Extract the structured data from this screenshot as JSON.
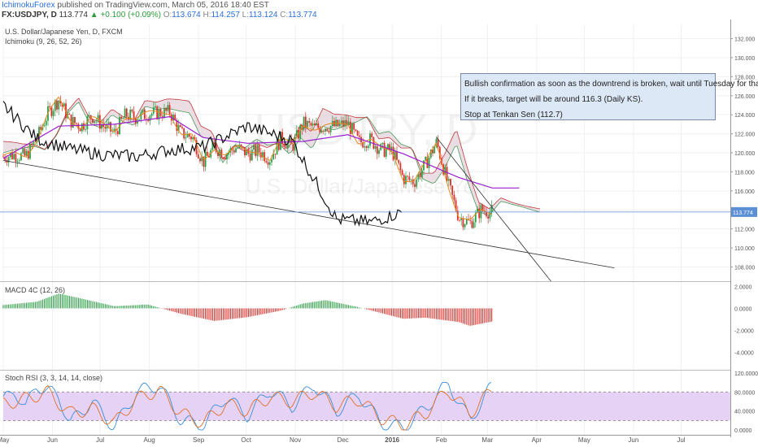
{
  "header": {
    "username": "IchimokuForex",
    "published": "published on TradingView.com, March 05, 2016 18:40 EST",
    "symbol": "FX:USDJPY, D",
    "last": "113.774",
    "change": "▲ +0.100 (+0.09%)",
    "open_label": "O:",
    "open": "113.674",
    "high_label": "H:",
    "high": "114.257",
    "low_label": "L:",
    "low": "113.124",
    "close_label": "C:",
    "close": "113.774"
  },
  "main_pane": {
    "title": "U.S. Dollar/Japanese Yen, D, FXCM",
    "indicator": "Ichimoku (9, 26, 52, 26)",
    "watermark_symbol": "USDJPY, D",
    "watermark_name": "U.S. Dollar/Japanese Yen",
    "price_tag": "113.774"
  },
  "annotation": {
    "line1": "Bullish confirmation as soon as the downtrend is broken, wait until Tuesday for that.",
    "line2": "If it breaks, target will be around 116.3 (Daily KS).",
    "line3": "Stop at Tenkan Sen (112.7)"
  },
  "macd_pane": {
    "title": "MACD 4C (12, 26)"
  },
  "rsi_pane": {
    "title": "Stoch RSI (3, 3, 14, 14, close)"
  },
  "colors": {
    "up_candle": "#2e9e48",
    "down_candle": "#d9302a",
    "tenkan": "#e08a1e",
    "kijun": "#9b1fcf",
    "chikou": "#111111",
    "cloud_bull_line": "#4c9a5a",
    "cloud_bear_line": "#c0393b",
    "cloud_fill": "#e6d4dd",
    "rsi_band": "#e6d2f5",
    "price_line": "#5b8fd6"
  },
  "chart_data": [
    {
      "type": "candlestick",
      "x_tick_labels": [
        "May",
        "Jun",
        "Jul",
        "Aug",
        "Sep",
        "Oct",
        "Nov",
        "Dec",
        "2016",
        "Feb",
        "Mar",
        "Apr",
        "May",
        "Jun",
        "Jul"
      ],
      "y_tick_labels": [
        "132.000",
        "130.000",
        "128.000",
        "126.000",
        "124.000",
        "122.000",
        "120.000",
        "118.000",
        "116.000",
        "114.000",
        "112.000",
        "110.000",
        "108.000"
      ],
      "ylim": [
        106.5,
        133.5
      ],
      "last_price": 113.774,
      "series": [
        {
          "name": "Price",
          "points": [
            {
              "d": "2015-05-01",
              "v": 119.6
            },
            {
              "d": "2015-05-08",
              "v": 119.8
            },
            {
              "d": "2015-05-15",
              "v": 119.6
            },
            {
              "d": "2015-05-22",
              "v": 121.4
            },
            {
              "d": "2015-05-29",
              "v": 124.1
            },
            {
              "d": "2015-06-05",
              "v": 125.6
            },
            {
              "d": "2015-06-12",
              "v": 123.4
            },
            {
              "d": "2015-06-19",
              "v": 122.8
            },
            {
              "d": "2015-06-26",
              "v": 123.9
            },
            {
              "d": "2015-07-03",
              "v": 122.8
            },
            {
              "d": "2015-07-10",
              "v": 122.1
            },
            {
              "d": "2015-07-17",
              "v": 124.0
            },
            {
              "d": "2015-07-24",
              "v": 123.7
            },
            {
              "d": "2015-07-31",
              "v": 124.1
            },
            {
              "d": "2015-08-07",
              "v": 124.2
            },
            {
              "d": "2015-08-14",
              "v": 124.3
            },
            {
              "d": "2015-08-21",
              "v": 122.0
            },
            {
              "d": "2015-08-28",
              "v": 121.7
            },
            {
              "d": "2015-09-04",
              "v": 119.0
            },
            {
              "d": "2015-09-11",
              "v": 120.6
            },
            {
              "d": "2015-09-18",
              "v": 119.9
            },
            {
              "d": "2015-09-25",
              "v": 120.6
            },
            {
              "d": "2015-10-02",
              "v": 119.9
            },
            {
              "d": "2015-10-09",
              "v": 120.2
            },
            {
              "d": "2015-10-16",
              "v": 119.4
            },
            {
              "d": "2015-10-23",
              "v": 121.5
            },
            {
              "d": "2015-10-30",
              "v": 120.6
            },
            {
              "d": "2015-11-06",
              "v": 123.1
            },
            {
              "d": "2015-11-13",
              "v": 122.6
            },
            {
              "d": "2015-11-20",
              "v": 122.8
            },
            {
              "d": "2015-11-27",
              "v": 122.8
            },
            {
              "d": "2015-12-04",
              "v": 123.1
            },
            {
              "d": "2015-12-11",
              "v": 121.1
            },
            {
              "d": "2015-12-18",
              "v": 121.4
            },
            {
              "d": "2015-12-25",
              "v": 120.3
            },
            {
              "d": "2016-01-01",
              "v": 120.2
            },
            {
              "d": "2016-01-08",
              "v": 117.3
            },
            {
              "d": "2016-01-15",
              "v": 117.0
            },
            {
              "d": "2016-01-22",
              "v": 118.8
            },
            {
              "d": "2016-01-29",
              "v": 121.1
            },
            {
              "d": "2016-02-05",
              "v": 116.8
            },
            {
              "d": "2016-02-12",
              "v": 113.2
            },
            {
              "d": "2016-02-19",
              "v": 112.6
            },
            {
              "d": "2016-02-26",
              "v": 114.0
            },
            {
              "d": "2016-03-04",
              "v": 113.8
            }
          ]
        },
        {
          "name": "Kijun",
          "points": [
            {
              "d": "2015-05-01",
              "v": 119.4
            },
            {
              "d": "2015-06-05",
              "v": 122.8
            },
            {
              "d": "2015-07-10",
              "v": 123.0
            },
            {
              "d": "2015-08-14",
              "v": 123.8
            },
            {
              "d": "2015-09-04",
              "v": 121.6
            },
            {
              "d": "2015-10-02",
              "v": 121.0
            },
            {
              "d": "2015-11-06",
              "v": 121.2
            },
            {
              "d": "2015-12-04",
              "v": 121.9
            },
            {
              "d": "2016-01-08",
              "v": 119.9
            },
            {
              "d": "2016-02-12",
              "v": 117.4
            },
            {
              "d": "2016-03-04",
              "v": 116.3
            },
            {
              "d": "2016-03-21",
              "v": 116.3
            }
          ]
        },
        {
          "name": "Chikou",
          "points": [
            {
              "d": "2015-05-01",
              "v": 125.0
            },
            {
              "d": "2015-05-22",
              "v": 121.5
            },
            {
              "d": "2015-06-12",
              "v": 120.4
            },
            {
              "d": "2015-07-03",
              "v": 119.8
            },
            {
              "d": "2015-07-24",
              "v": 119.6
            },
            {
              "d": "2015-08-14",
              "v": 120.3
            },
            {
              "d": "2015-09-04",
              "v": 120.6
            },
            {
              "d": "2015-10-02",
              "v": 122.8
            },
            {
              "d": "2015-10-30",
              "v": 121.3
            },
            {
              "d": "2015-11-27",
              "v": 113.0
            },
            {
              "d": "2015-12-18",
              "v": 112.7
            },
            {
              "d": "2016-01-08",
              "v": 113.8
            }
          ]
        }
      ]
    },
    {
      "type": "bar",
      "title": "MACD 4C (12, 26)",
      "y_tick_labels": [
        "2.0000",
        "0.0000",
        "-2.0000",
        "-4.0000"
      ],
      "ylim": [
        -5.6,
        2.4
      ],
      "series": [
        {
          "name": "MACD",
          "points": [
            {
              "d": "2015-05-01",
              "v": 0.3
            },
            {
              "d": "2015-05-22",
              "v": 0.6
            },
            {
              "d": "2015-06-05",
              "v": 1.35
            },
            {
              "d": "2015-06-19",
              "v": 0.9
            },
            {
              "d": "2015-07-10",
              "v": 0.2
            },
            {
              "d": "2015-07-31",
              "v": 0.35
            },
            {
              "d": "2015-08-21",
              "v": -0.5
            },
            {
              "d": "2015-09-11",
              "v": -1.15
            },
            {
              "d": "2015-10-02",
              "v": -0.8
            },
            {
              "d": "2015-10-23",
              "v": -0.2
            },
            {
              "d": "2015-11-06",
              "v": 0.45
            },
            {
              "d": "2015-11-20",
              "v": 0.75
            },
            {
              "d": "2015-12-11",
              "v": 0.1
            },
            {
              "d": "2016-01-08",
              "v": -0.95
            },
            {
              "d": "2016-01-22",
              "v": -0.85
            },
            {
              "d": "2016-02-12",
              "v": -1.25
            },
            {
              "d": "2016-02-19",
              "v": -1.6
            },
            {
              "d": "2016-03-04",
              "v": -1.2
            }
          ]
        }
      ]
    },
    {
      "type": "line",
      "title": "Stoch RSI (3, 3, 14, 14, close)",
      "y_tick_labels": [
        "120.0000",
        "80.0000",
        "40.0000",
        "0.0000"
      ],
      "ylim": [
        -10,
        125
      ],
      "band": [
        20,
        80
      ],
      "series": [
        {
          "name": "K",
          "points": [
            {
              "d": "2015-05-01",
              "v": 60
            },
            {
              "d": "2015-05-08",
              "v": 85
            },
            {
              "d": "2015-05-15",
              "v": 45
            },
            {
              "d": "2015-05-22",
              "v": 95
            },
            {
              "d": "2015-06-05",
              "v": 70
            },
            {
              "d": "2015-06-12",
              "v": 15
            },
            {
              "d": "2015-06-26",
              "v": 60
            },
            {
              "d": "2015-07-10",
              "v": 5
            },
            {
              "d": "2015-07-24",
              "v": 80
            },
            {
              "d": "2015-08-07",
              "v": 95
            },
            {
              "d": "2015-08-21",
              "v": 20
            },
            {
              "d": "2015-09-04",
              "v": 10
            },
            {
              "d": "2015-09-18",
              "v": 70
            },
            {
              "d": "2015-10-02",
              "v": 30
            },
            {
              "d": "2015-10-16",
              "v": 85
            },
            {
              "d": "2015-10-30",
              "v": 50
            },
            {
              "d": "2015-11-13",
              "v": 95
            },
            {
              "d": "2015-11-27",
              "v": 40
            },
            {
              "d": "2015-12-11",
              "v": 75
            },
            {
              "d": "2015-12-25",
              "v": 15
            },
            {
              "d": "2016-01-08",
              "v": 5
            },
            {
              "d": "2016-01-22",
              "v": 45
            },
            {
              "d": "2016-02-05",
              "v": 100
            },
            {
              "d": "2016-02-19",
              "v": 20
            },
            {
              "d": "2016-03-04",
              "v": 95
            }
          ]
        },
        {
          "name": "D",
          "points": [
            {
              "d": "2015-05-01",
              "v": 55
            },
            {
              "d": "2015-05-15",
              "v": 65
            },
            {
              "d": "2015-05-29",
              "v": 80
            },
            {
              "d": "2015-06-12",
              "v": 35
            },
            {
              "d": "2015-06-26",
              "v": 45
            },
            {
              "d": "2015-07-10",
              "v": 15
            },
            {
              "d": "2015-07-24",
              "v": 65
            },
            {
              "d": "2015-08-07",
              "v": 85
            },
            {
              "d": "2015-08-21",
              "v": 35
            },
            {
              "d": "2015-09-04",
              "v": 15
            },
            {
              "d": "2015-09-18",
              "v": 55
            },
            {
              "d": "2015-10-02",
              "v": 40
            },
            {
              "d": "2015-10-16",
              "v": 70
            },
            {
              "d": "2015-10-30",
              "v": 60
            },
            {
              "d": "2015-11-13",
              "v": 80
            },
            {
              "d": "2015-11-27",
              "v": 50
            },
            {
              "d": "2015-12-11",
              "v": 65
            },
            {
              "d": "2015-12-25",
              "v": 25
            },
            {
              "d": "2016-01-08",
              "v": 10
            },
            {
              "d": "2016-01-22",
              "v": 35
            },
            {
              "d": "2016-02-05",
              "v": 85
            },
            {
              "d": "2016-02-19",
              "v": 35
            },
            {
              "d": "2016-03-04",
              "v": 85
            }
          ]
        }
      ]
    }
  ]
}
